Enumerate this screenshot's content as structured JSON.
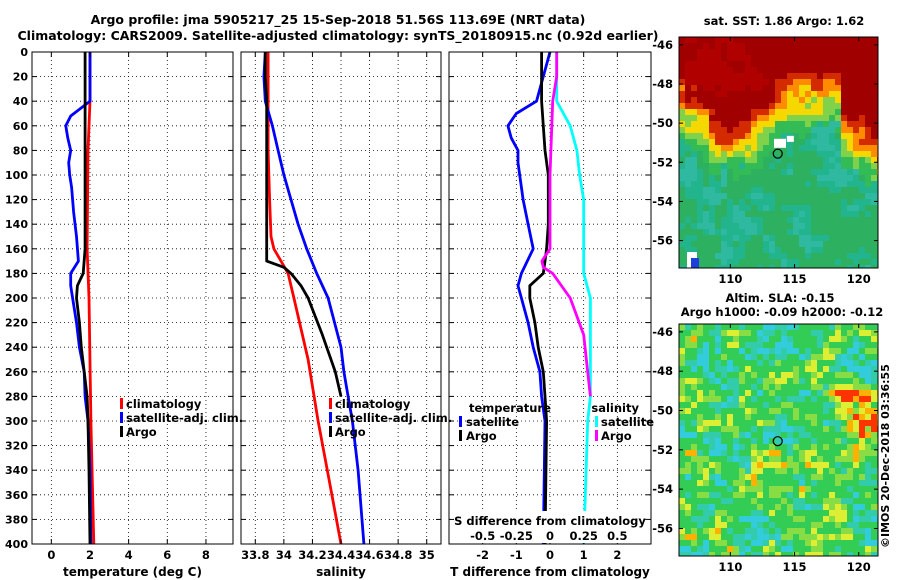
{
  "header": {
    "line1": "Argo profile: jma 5905217_25 15-Sep-2018 51.56S 113.69E (NRT data)",
    "line2": "Climatology: CARS2009. Satellite-adjusted climatology: synTS_20180915.nc (0.92d earlier)"
  },
  "colors": {
    "climatology": "#ff0000",
    "satellite": "#0000ff",
    "argo": "#000000",
    "sal_satellite": "#00ffff",
    "sal_argo": "#ff00ff"
  },
  "chart_data": [
    {
      "type": "line",
      "title": "",
      "xlabel": "temperature (deg C)",
      "ylabel": "",
      "xlim": [
        -1,
        9.4
      ],
      "ylim": [
        400,
        0
      ],
      "xticks": [
        "0",
        "2",
        "4",
        "6",
        "8"
      ],
      "xtick_values": [
        0,
        2,
        4,
        6,
        8
      ],
      "yticks": [
        "0",
        "20",
        "40",
        "60",
        "80",
        "100",
        "120",
        "140",
        "160",
        "180",
        "200",
        "220",
        "240",
        "260",
        "280",
        "300",
        "320",
        "340",
        "360",
        "380",
        "400"
      ],
      "legend": [
        "climatology",
        "satellite-adj. clim.",
        "Argo"
      ],
      "series": [
        {
          "name": "climatology",
          "color": "#ff0000",
          "depth": [
            0,
            40,
            80,
            160,
            200,
            300,
            400
          ],
          "values": [
            2.0,
            2.0,
            1.9,
            1.85,
            1.95,
            2.05,
            2.2
          ]
        },
        {
          "name": "satellite-adj. clim.",
          "color": "#0000ff",
          "depth": [
            0,
            40,
            52,
            60,
            70,
            80,
            90,
            100,
            110,
            130,
            150,
            170,
            180,
            190,
            200,
            220,
            240,
            260,
            280,
            300,
            340,
            400
          ],
          "values": [
            2.0,
            2.0,
            1.0,
            0.75,
            0.85,
            1.0,
            0.9,
            0.95,
            1.05,
            1.15,
            1.3,
            1.4,
            1.0,
            1.0,
            1.1,
            1.3,
            1.45,
            1.7,
            1.75,
            1.9,
            2.0,
            2.05
          ]
        },
        {
          "name": "Argo",
          "color": "#000000",
          "depth": [
            0,
            160,
            180,
            190,
            200,
            220,
            240,
            260,
            280,
            300,
            340,
            400
          ],
          "values": [
            1.75,
            1.75,
            1.65,
            1.35,
            1.3,
            1.45,
            1.55,
            1.7,
            1.85,
            1.9,
            1.95,
            2.0
          ]
        }
      ]
    },
    {
      "type": "line",
      "xlabel": "salinity",
      "xlim": [
        33.7,
        35.1
      ],
      "ylim": [
        400,
        0
      ],
      "xticks": [
        "33.8",
        "34",
        "34.2",
        "34.4",
        "34.6",
        "34.8",
        "35"
      ],
      "xtick_values": [
        33.8,
        34,
        34.2,
        34.4,
        34.6,
        34.8,
        35
      ],
      "yticks": [
        "0",
        "20",
        "40",
        "60",
        "80",
        "100",
        "120",
        "140",
        "160",
        "180",
        "200",
        "220",
        "240",
        "260",
        "280",
        "300",
        "320",
        "340",
        "360",
        "380",
        "400"
      ],
      "legend": [
        "climatology",
        "satellite-adj. clim.",
        "Argo"
      ],
      "series": [
        {
          "name": "climatology",
          "color": "#ff0000",
          "depth": [
            0,
            80,
            120,
            150,
            160,
            170,
            180,
            200,
            250,
            300,
            350,
            400
          ],
          "values": [
            33.89,
            33.89,
            33.9,
            33.91,
            33.93,
            33.98,
            34.03,
            34.07,
            34.17,
            34.24,
            34.32,
            34.4
          ]
        },
        {
          "name": "satellite-adj. clim.",
          "color": "#0000ff",
          "depth": [
            0,
            20,
            40,
            60,
            80,
            100,
            120,
            140,
            160,
            180,
            200,
            240,
            260,
            280,
            300,
            340,
            400
          ],
          "values": [
            33.87,
            33.86,
            33.87,
            33.92,
            33.96,
            34.0,
            34.05,
            34.1,
            34.16,
            34.23,
            34.31,
            34.4,
            34.42,
            34.45,
            34.48,
            34.52,
            34.56
          ]
        },
        {
          "name": "Argo",
          "color": "#000000",
          "depth": [
            0,
            20,
            40,
            100,
            140,
            160,
            170,
            175,
            180,
            190,
            200,
            230,
            260,
            280
          ],
          "values": [
            33.87,
            33.87,
            33.88,
            33.88,
            33.88,
            33.88,
            33.88,
            34.0,
            34.05,
            34.12,
            34.17,
            34.27,
            34.36,
            34.4
          ]
        }
      ]
    },
    {
      "type": "line",
      "xlabel": "T difference from climatology",
      "xlabel2": "S difference from climatology",
      "xlim": [
        -3,
        3
      ],
      "ylim": [
        400,
        0
      ],
      "xticks": [
        "-2",
        "-1",
        "0",
        "1",
        "2"
      ],
      "xtick_values": [
        -2,
        -1,
        0,
        1,
        2
      ],
      "xticks_top": [
        "-0.5",
        "-0.25",
        "0",
        "0.25",
        "0.5"
      ],
      "yticks": [
        "0",
        "20",
        "40",
        "60",
        "80",
        "100",
        "120",
        "140",
        "160",
        "180",
        "200",
        "220",
        "240",
        "260",
        "280",
        "300",
        "320",
        "340",
        "360",
        "380",
        "400"
      ],
      "legend_left_title": "temperature",
      "legend_left": [
        "satellite",
        "Argo"
      ],
      "legend_right_title": "salinity",
      "legend_right": [
        "satellite",
        "Argo"
      ],
      "series": [
        {
          "name": "T satellite",
          "color": "#0000ff",
          "depth": [
            0,
            40,
            50,
            60,
            70,
            80,
            90,
            100,
            120,
            140,
            160,
            180,
            190,
            200,
            220,
            240,
            260,
            280,
            300,
            400
          ],
          "values": [
            0,
            -0.4,
            -1.0,
            -1.25,
            -1.15,
            -0.95,
            -0.95,
            -0.9,
            -0.8,
            -0.65,
            -0.5,
            -0.85,
            -0.95,
            -0.85,
            -0.65,
            -0.5,
            -0.3,
            -0.25,
            -0.15,
            -0.2
          ]
        },
        {
          "name": "T Argo",
          "color": "#000000",
          "depth": [
            0,
            40,
            60,
            80,
            100,
            120,
            140,
            160,
            170,
            180,
            190,
            200,
            220,
            240,
            260,
            280,
            300,
            400
          ],
          "values": [
            -0.25,
            -0.25,
            -0.2,
            -0.15,
            -0.05,
            -0.05,
            -0.05,
            -0.1,
            -0.15,
            -0.2,
            -0.6,
            -0.6,
            -0.45,
            -0.35,
            -0.2,
            -0.15,
            -0.1,
            -0.15
          ]
        },
        {
          "name": "S satellite",
          "color": "#00ffff",
          "depth": [
            0,
            20,
            40,
            60,
            80,
            100,
            120,
            140,
            160,
            170,
            180,
            200,
            240,
            280,
            300,
            400
          ],
          "values": [
            0.05,
            0.05,
            0.05,
            0.15,
            0.2,
            0.22,
            0.25,
            0.25,
            0.25,
            0.25,
            0.25,
            0.3,
            0.3,
            0.3,
            0.28,
            0.25
          ]
        },
        {
          "name": "S Argo",
          "color": "#ff00ff",
          "depth": [
            0,
            20,
            40,
            100,
            140,
            160,
            170,
            175,
            180,
            200,
            230,
            260,
            280
          ],
          "values": [
            0.05,
            0.05,
            0.02,
            0.0,
            0.0,
            0.0,
            -0.06,
            -0.05,
            0.02,
            0.15,
            0.25,
            0.28,
            0.3
          ]
        }
      ]
    }
  ],
  "maps": {
    "sst": {
      "title": "sat. SST: 1.86 Argo: 1.62",
      "lat_ticks": [
        "-46",
        "-48",
        "-50",
        "-52",
        "-54",
        "-56"
      ],
      "lat_values": [
        -46,
        -48,
        -50,
        -52,
        -54,
        -56
      ],
      "lon_ticks": [
        "110",
        "115",
        "120"
      ],
      "lon_values": [
        110,
        115,
        120
      ],
      "lon_range": [
        106,
        121.5
      ],
      "lat_range": [
        -57.4,
        -45.6
      ],
      "argo_lon": 113.69,
      "argo_lat": -51.56
    },
    "sla": {
      "title1": "Altim. SLA: -0.15",
      "title2": "Argo h1000: -0.09 h2000: -0.12",
      "lat_ticks": [
        "-46",
        "-48",
        "-50",
        "-52",
        "-54",
        "-56"
      ],
      "lat_values": [
        -46,
        -48,
        -50,
        -52,
        -54,
        -56
      ],
      "lon_ticks": [
        "110",
        "115",
        "120"
      ],
      "lon_values": [
        110,
        115,
        120
      ],
      "lon_range": [
        106,
        121.5
      ],
      "lat_range": [
        -57.4,
        -45.6
      ],
      "argo_lon": 113.69,
      "argo_lat": -51.56
    }
  },
  "footer": {
    "stamp": "©IMOS 20-Dec-2018 03:36:55"
  }
}
